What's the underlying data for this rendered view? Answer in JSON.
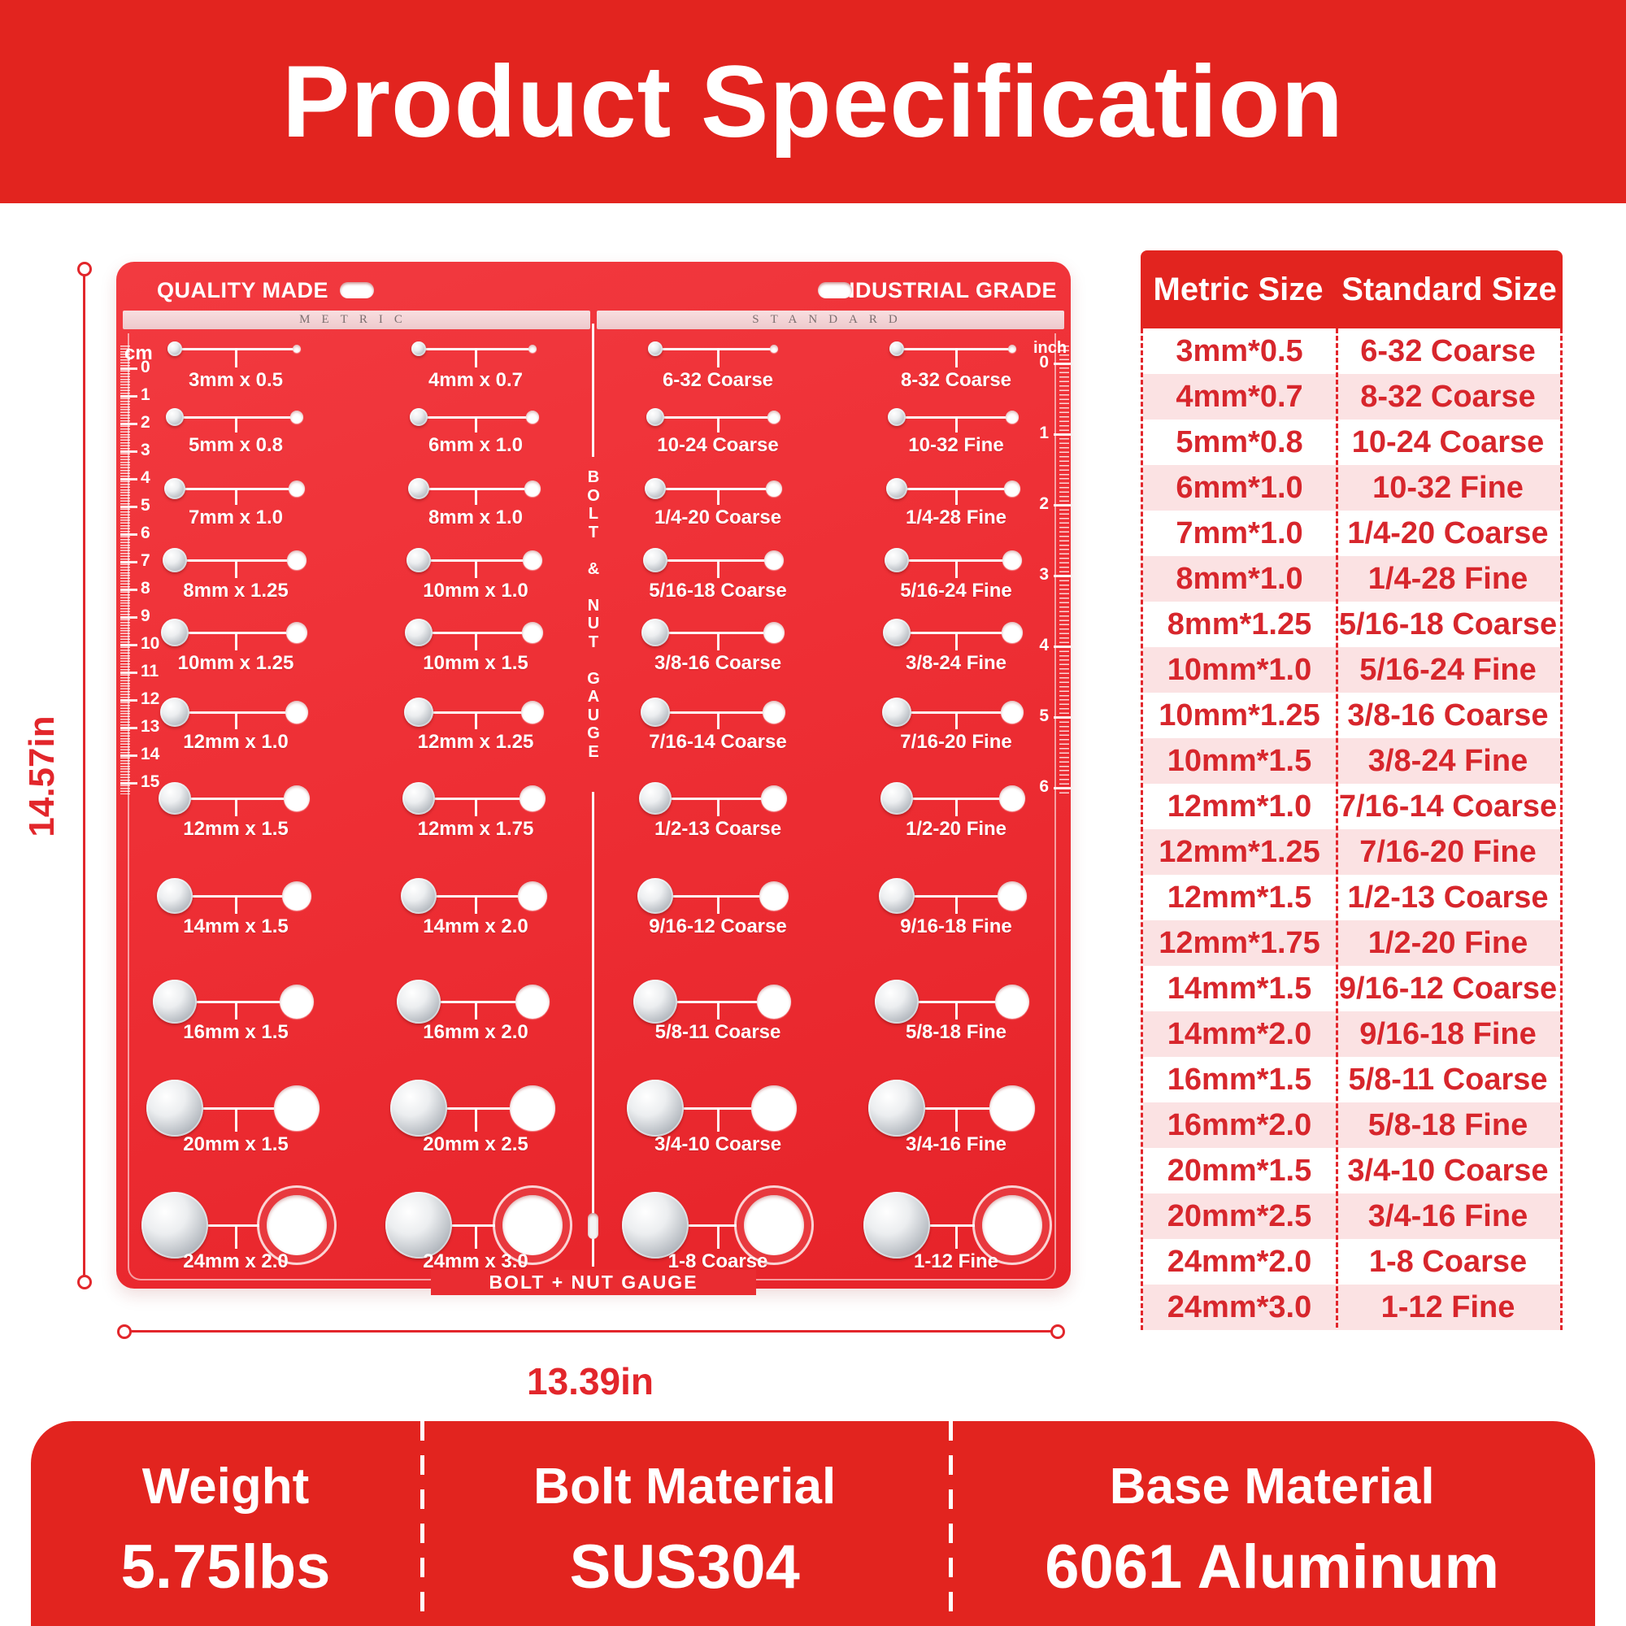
{
  "title": "Product Specification",
  "dimensions": {
    "height_label": "14.57in",
    "width_label": "13.39in"
  },
  "board": {
    "top_left_text": "QUALITY MADE",
    "top_right_text": "INDUSTRIAL GRADE",
    "metric_strip_label": "METRIC",
    "standard_strip_label": "STANDARD",
    "center_divider_text": "BOLT & NUT GAUGE",
    "bottom_text": "BOLT + NUT GAUGE",
    "cm_ruler": {
      "label": "cm",
      "numbers": [
        0,
        1,
        2,
        3,
        4,
        5,
        6,
        7,
        8,
        9,
        10,
        11,
        12,
        13,
        14,
        15
      ]
    },
    "inch_ruler": {
      "label": "inch",
      "numbers": [
        0,
        1,
        2,
        3,
        4,
        5,
        6
      ]
    },
    "rows": [
      {
        "cells": [
          "3mm x 0.5",
          "4mm x 0.7",
          "6-32 Coarse",
          "8-32 Coarse"
        ]
      },
      {
        "cells": [
          "5mm x 0.8",
          "6mm x 1.0",
          "10-24 Coarse",
          "10-32 Fine"
        ]
      },
      {
        "cells": [
          "7mm x 1.0",
          "8mm x 1.0",
          "1/4-20 Coarse",
          "1/4-28 Fine"
        ]
      },
      {
        "cells": [
          "8mm x 1.25",
          "10mm x 1.0",
          "5/16-18 Coarse",
          "5/16-24 Fine"
        ]
      },
      {
        "cells": [
          "10mm x 1.25",
          "10mm x 1.5",
          "3/8-16 Coarse",
          "3/8-24 Fine"
        ]
      },
      {
        "cells": [
          "12mm x 1.0",
          "12mm x 1.25",
          "7/16-14 Coarse",
          "7/16-20 Fine"
        ]
      },
      {
        "cells": [
          "12mm x 1.5",
          "12mm x 1.75",
          "1/2-13 Coarse",
          "1/2-20 Fine"
        ]
      },
      {
        "cells": [
          "14mm x 1.5",
          "14mm x 2.0",
          "9/16-12 Coarse",
          "9/16-18 Fine"
        ]
      },
      {
        "cells": [
          "16mm x 1.5",
          "16mm x 2.0",
          "5/8-11 Coarse",
          "5/8-18 Fine"
        ]
      },
      {
        "cells": [
          "20mm x 1.5",
          "20mm x 2.5",
          "3/4-10 Coarse",
          "3/4-16 Fine"
        ]
      },
      {
        "cells": [
          "24mm x 2.0",
          "24mm x 3.0",
          "1-8 Coarse",
          "1-12 Fine"
        ]
      }
    ]
  },
  "spec_table": {
    "headers": [
      "Metric Size",
      "Standard Size"
    ],
    "rows": [
      [
        "3mm*0.5",
        "6-32 Coarse"
      ],
      [
        "4mm*0.7",
        "8-32 Coarse"
      ],
      [
        "5mm*0.8",
        "10-24 Coarse"
      ],
      [
        "6mm*1.0",
        "10-32 Fine"
      ],
      [
        "7mm*1.0",
        "1/4-20 Coarse"
      ],
      [
        "8mm*1.0",
        "1/4-28 Fine"
      ],
      [
        "8mm*1.25",
        "5/16-18 Coarse"
      ],
      [
        "10mm*1.0",
        "5/16-24 Fine"
      ],
      [
        "10mm*1.25",
        "3/8-16 Coarse"
      ],
      [
        "10mm*1.5",
        "3/8-24 Fine"
      ],
      [
        "12mm*1.0",
        "7/16-14 Coarse"
      ],
      [
        "12mm*1.25",
        "7/16-20 Fine"
      ],
      [
        "12mm*1.5",
        "1/2-13 Coarse"
      ],
      [
        "12mm*1.75",
        "1/2-20 Fine"
      ],
      [
        "14mm*1.5",
        "9/16-12 Coarse"
      ],
      [
        "14mm*2.0",
        "9/16-18 Fine"
      ],
      [
        "16mm*1.5",
        "5/8-11 Coarse"
      ],
      [
        "16mm*2.0",
        "5/8-18 Fine"
      ],
      [
        "20mm*1.5",
        "3/4-10 Coarse"
      ],
      [
        "20mm*2.5",
        "3/4-16 Fine"
      ],
      [
        "24mm*2.0",
        "1-8 Coarse"
      ],
      [
        "24mm*3.0",
        "1-12 Fine"
      ]
    ]
  },
  "bottom_panel": {
    "items": [
      {
        "label": "Weight",
        "value": "5.75lbs"
      },
      {
        "label": "Bolt Material",
        "value": "SUS304"
      },
      {
        "label": "Base Material",
        "value": "6061 Aluminum"
      }
    ]
  },
  "colors": {
    "banner_red": "#e2241f",
    "board_red": "#ee2f35",
    "strip_pink": "#f3d2d4",
    "table_row_pink": "#fbe2e3",
    "table_text_red": "#d7262c",
    "dimension_red": "#e2262b"
  }
}
